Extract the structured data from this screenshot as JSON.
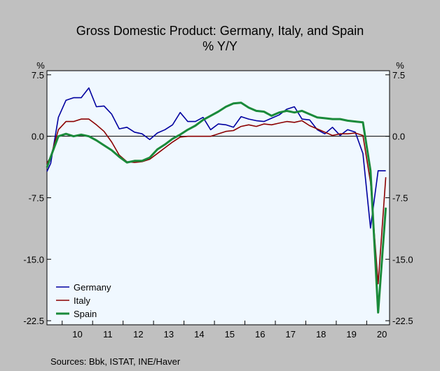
{
  "chart_data": {
    "type": "line",
    "title": "Gross Domestic Product: Germany, Italy, and Spain",
    "subtitle": "% Y/Y",
    "unit_left": "%",
    "unit_right": "%",
    "xlim": [
      2009.5,
      2020.75
    ],
    "ylim": [
      -23.0,
      8.0
    ],
    "y_ticks": [
      7.5,
      0.0,
      -7.5,
      -15.0,
      -22.5
    ],
    "y_tick_labels": [
      "7.5",
      "0.0",
      "-7.5",
      "-15.0",
      "-22.5"
    ],
    "x_tick_labels": [
      "10",
      "11",
      "12",
      "13",
      "14",
      "15",
      "16",
      "17",
      "18",
      "19",
      "20"
    ],
    "grid": false,
    "zero_line": true,
    "legend": "bottom-left",
    "source": "Sources:  Bbk, ISTAT, INE/Haver",
    "x": [
      2009.5,
      2009.625,
      2009.875,
      2010.125,
      2010.375,
      2010.625,
      2010.875,
      2011.125,
      2011.375,
      2011.625,
      2011.875,
      2012.125,
      2012.375,
      2012.625,
      2012.875,
      2013.125,
      2013.375,
      2013.625,
      2013.875,
      2014.125,
      2014.375,
      2014.625,
      2014.875,
      2015.125,
      2015.375,
      2015.625,
      2015.875,
      2016.125,
      2016.375,
      2016.625,
      2016.875,
      2017.125,
      2017.375,
      2017.625,
      2017.875,
      2018.125,
      2018.375,
      2018.625,
      2018.875,
      2019.125,
      2019.375,
      2019.625,
      2019.875,
      2020.125,
      2020.375,
      2020.625
    ],
    "series": [
      {
        "name": "Germany",
        "color": "#0000a0",
        "values": [
          -4.3,
          -3.3,
          2.3,
          4.4,
          4.7,
          4.7,
          5.9,
          3.6,
          3.7,
          2.7,
          0.9,
          1.1,
          0.5,
          0.3,
          -0.4,
          0.4,
          0.8,
          1.4,
          2.9,
          1.8,
          1.8,
          2.3,
          0.8,
          1.5,
          1.4,
          1.1,
          2.4,
          2.1,
          1.9,
          1.8,
          2.2,
          2.6,
          3.3,
          3.6,
          2.1,
          2.0,
          0.8,
          0.3,
          1.1,
          0.1,
          0.8,
          0.5,
          -2.1,
          -11.2,
          -4.2,
          -4.2
        ]
      },
      {
        "name": "Italy",
        "color": "#8b0000",
        "values": [
          -3.3,
          -2.5,
          0.8,
          1.8,
          1.8,
          2.1,
          2.1,
          1.4,
          0.6,
          -0.7,
          -2.3,
          -3.1,
          -3.2,
          -3.1,
          -2.8,
          -2.1,
          -1.4,
          -0.7,
          -0.1,
          0.0,
          0.0,
          0.0,
          0.0,
          0.3,
          0.6,
          0.7,
          1.2,
          1.4,
          1.2,
          1.5,
          1.4,
          1.6,
          1.8,
          1.7,
          1.9,
          1.3,
          0.9,
          0.5,
          0.1,
          0.3,
          0.3,
          0.4,
          0.1,
          -5.6,
          -18.0,
          -5.0
        ]
      },
      {
        "name": "Spain",
        "color": "#1a8a3a",
        "values": [
          -3.8,
          -2.5,
          0.0,
          0.3,
          0.0,
          0.2,
          0.0,
          -0.5,
          -1.1,
          -1.7,
          -2.5,
          -3.2,
          -3.0,
          -3.0,
          -2.6,
          -1.6,
          -1.0,
          -0.3,
          0.2,
          0.8,
          1.3,
          2.0,
          2.5,
          3.0,
          3.6,
          4.0,
          4.1,
          3.5,
          3.1,
          3.0,
          2.5,
          2.9,
          3.1,
          2.9,
          3.1,
          2.7,
          2.3,
          2.2,
          2.1,
          2.1,
          1.9,
          1.8,
          1.7,
          -4.2,
          -21.5,
          -8.7
        ]
      }
    ]
  }
}
